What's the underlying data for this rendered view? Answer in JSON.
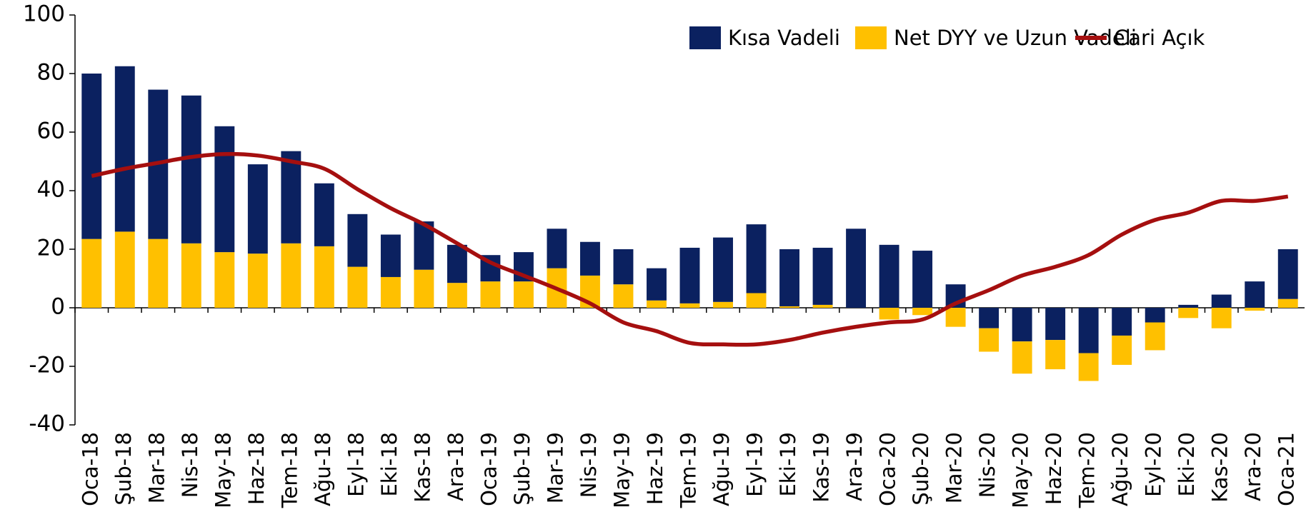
{
  "chart_data": {
    "type": "bar",
    "categories": [
      "Oca-18",
      "Şub-18",
      "Mar-18",
      "Nis-18",
      "May-18",
      "Haz-18",
      "Tem-18",
      "Ağu-18",
      "Eyl-18",
      "Eki-18",
      "Kas-18",
      "Ara-18",
      "Oca-19",
      "Şub-19",
      "Mar-19",
      "Nis-19",
      "May-19",
      "Haz-19",
      "Tem-19",
      "Ağu-19",
      "Eyl-19",
      "Eki-19",
      "Kas-19",
      "Ara-19",
      "Oca-20",
      "Şub-20",
      "Mar-20",
      "Nis-20",
      "May-20",
      "Haz-20",
      "Tem-20",
      "Ağu-20",
      "Eyl-20",
      "Eki-20",
      "Kas-20",
      "Ara-20",
      "Oca-21"
    ],
    "series": [
      {
        "name": "Kısa Vadeli",
        "color": "#0b2160",
        "type": "bar",
        "values": [
          56.5,
          56.5,
          51,
          50.5,
          43,
          30.5,
          31.5,
          21.5,
          18,
          14.5,
          16.5,
          13,
          9,
          10,
          13.5,
          11.5,
          12,
          11,
          19,
          22,
          23.5,
          19.5,
          19.5,
          27,
          21.5,
          19.5,
          8,
          -7,
          -11.5,
          -11,
          -15.5,
          -9.5,
          -5,
          1,
          4.5,
          9,
          17
        ]
      },
      {
        "name": "Net DYY ve Uzun Vadeli",
        "color": "#ffc000",
        "type": "bar",
        "values": [
          23.5,
          26,
          23.5,
          22,
          19,
          18.5,
          22,
          21,
          14,
          10.5,
          13,
          8.5,
          9,
          9,
          13.5,
          11,
          8,
          2.5,
          1.5,
          2,
          5,
          0.5,
          1,
          0,
          -4,
          -2.5,
          -6.5,
          -8,
          -11,
          -10,
          -9.5,
          -10,
          -9.5,
          -3.5,
          -7,
          -1,
          3
        ]
      },
      {
        "name": "Cari Açık",
        "color": "#a50f0f",
        "type": "line",
        "values": [
          45,
          47.5,
          49.5,
          51.5,
          52.5,
          52,
          50,
          47.5,
          40.5,
          34,
          28.5,
          22,
          15.5,
          11,
          6.5,
          1.5,
          -5,
          -8,
          -12,
          -12.5,
          -12.5,
          -11,
          -8.5,
          -6.5,
          -5,
          -4,
          1.5,
          6,
          11,
          14,
          18,
          25,
          30,
          32.5,
          36.5,
          36.5,
          38
        ]
      }
    ],
    "ylim": [
      -40,
      100
    ],
    "yticks": [
      -40,
      -20,
      0,
      20,
      40,
      60,
      80,
      100
    ],
    "legend": "top-right"
  }
}
